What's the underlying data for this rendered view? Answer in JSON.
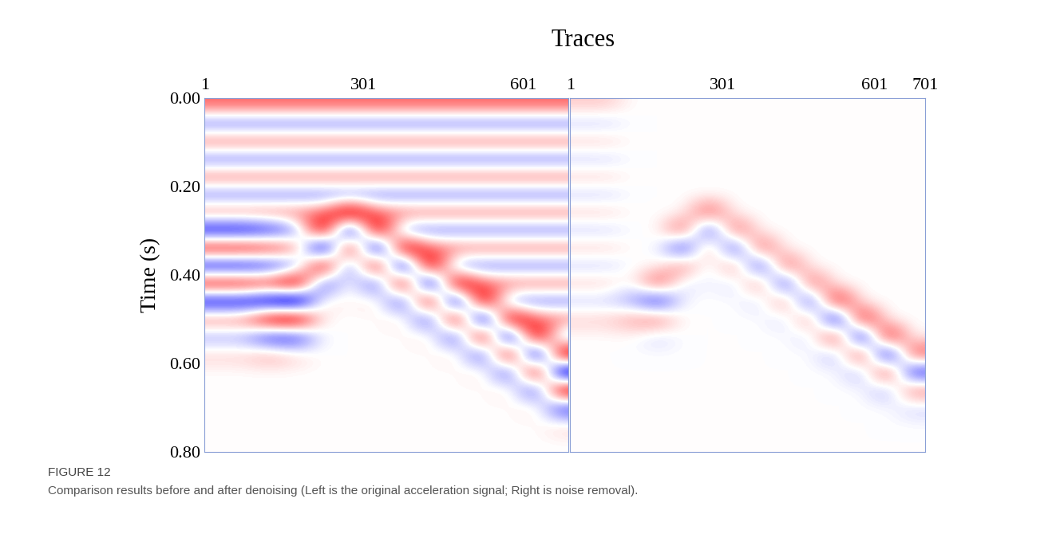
{
  "supertitle": "Traces",
  "caption": {
    "label": "FIGURE 12",
    "text": "Comparison results before and after denoising (Left is the original acceleration signal; Right is noise removal)."
  },
  "chart_data": [
    {
      "type": "heatmap",
      "color": "seismic",
      "value_range": [
        -1,
        1
      ],
      "y_label": "Time (s)",
      "x": [
        25,
        75,
        125,
        175,
        225,
        275,
        325,
        375,
        425,
        475,
        525,
        575,
        625,
        675
      ],
      "y": [
        0.02,
        0.06,
        0.1,
        0.14,
        0.18,
        0.22,
        0.26,
        0.3,
        0.34,
        0.38,
        0.42,
        0.46,
        0.5,
        0.54,
        0.58,
        0.62,
        0.66,
        0.7,
        0.74,
        0.78
      ],
      "xlim": [
        1,
        686
      ],
      "xticks": [
        1,
        301,
        601
      ],
      "ylim": [
        0.8,
        0
      ],
      "yticks": [
        {
          "value": 0,
          "label": "0.00"
        },
        {
          "value": 0.2,
          "label": "0.20"
        },
        {
          "value": 0.4,
          "label": "0.40"
        },
        {
          "value": 0.6,
          "label": "0.60"
        },
        {
          "value": 0.8,
          "label": "0.80"
        }
      ],
      "cells": [
        [
          0.3,
          0.3,
          0.3,
          0.3,
          0.3,
          0.3,
          0.3,
          0.3,
          0.3,
          0.3,
          0.3,
          0.3,
          0.3,
          0.3
        ],
        [
          -0.3,
          -0.3,
          -0.3,
          -0.3,
          -0.3,
          -0.3,
          -0.3,
          -0.3,
          -0.3,
          -0.3,
          -0.3,
          -0.3,
          -0.3,
          -0.3
        ],
        [
          0.3,
          0.3,
          0.3,
          0.3,
          0.3,
          0.3,
          0.3,
          0.3,
          0.3,
          0.3,
          0.3,
          0.3,
          0.3,
          0.3
        ],
        [
          -0.3,
          -0.3,
          -0.3,
          -0.3,
          -0.3,
          -0.3,
          -0.3,
          -0.3,
          -0.3,
          -0.3,
          -0.3,
          -0.3,
          -0.3,
          -0.3
        ],
        [
          0.3,
          0.3,
          0.3,
          0.3,
          0.3,
          0.3,
          0.3,
          0.3,
          0.3,
          0.3,
          0.3,
          0.3,
          0.3,
          0.3
        ],
        [
          -0.3,
          -0.3,
          -0.3,
          -0.3,
          -0.3,
          -0.3,
          -0.3,
          -0.3,
          -0.3,
          -0.3,
          -0.3,
          -0.3,
          -0.3,
          -0.3
        ],
        [
          0.3,
          0.3,
          0.3,
          0.3,
          0.3,
          0.8,
          0.3,
          0.3,
          0.3,
          0.3,
          0.3,
          0.3,
          0.3,
          0.3
        ],
        [
          -0.6,
          -0.6,
          -0.5,
          -0.3,
          0.8,
          -0.9,
          0.8,
          -0.3,
          -0.3,
          -0.3,
          -0.3,
          -0.3,
          -0.3,
          -0.3
        ],
        [
          0.6,
          0.6,
          0.5,
          0.3,
          -0.9,
          0.8,
          -0.9,
          0.8,
          0.3,
          0.3,
          0.3,
          0.3,
          0.3,
          0.3
        ],
        [
          -0.6,
          -0.6,
          -0.5,
          -0.3,
          0.8,
          -0.5,
          0.8,
          -0.9,
          0.8,
          -0.3,
          -0.3,
          -0.3,
          -0.3,
          -0.3
        ],
        [
          0.6,
          0.6,
          0.5,
          0.8,
          -0.5,
          0.1,
          -0.5,
          0.8,
          -0.9,
          0.8,
          0.3,
          0.3,
          0.3,
          0.3
        ],
        [
          -0.6,
          -0.6,
          -0.7,
          -0.9,
          0.1,
          0,
          0.1,
          -0.5,
          0.8,
          -0.9,
          0.8,
          -0.3,
          -0.3,
          -0.3
        ],
        [
          0.3,
          0.3,
          0.7,
          0.8,
          0,
          0,
          0,
          0.1,
          -0.5,
          0.8,
          -0.9,
          0.8,
          0.3,
          0.3
        ],
        [
          -0.2,
          -0.2,
          -0.5,
          -0.5,
          0,
          0,
          0,
          0,
          0.1,
          -0.5,
          0.8,
          -0.9,
          0.8,
          -0.3
        ],
        [
          0.1,
          0.1,
          0.2,
          0.1,
          0,
          0,
          0,
          0,
          0,
          0.1,
          -0.5,
          0.8,
          -0.9,
          0.8
        ],
        [
          0,
          0,
          0,
          0,
          0,
          0,
          0,
          0,
          0,
          0,
          0.1,
          -0.5,
          0.8,
          -0.9
        ],
        [
          0,
          0,
          0,
          0,
          0,
          0,
          0,
          0,
          0,
          0,
          0,
          0.1,
          -0.5,
          0.8
        ],
        [
          0,
          0,
          0,
          0,
          0,
          0,
          0,
          0,
          0,
          0,
          0,
          0,
          0.1,
          -0.5
        ],
        [
          0,
          0,
          0,
          0,
          0,
          0,
          0,
          0,
          0,
          0,
          0,
          0,
          0,
          0.1
        ],
        [
          0,
          0,
          0,
          0,
          0,
          0,
          0,
          0,
          0,
          0,
          0,
          0,
          0,
          0
        ]
      ]
    },
    {
      "type": "heatmap",
      "color": "seismic",
      "value_range": [
        -1,
        1
      ],
      "tick_labels": "x",
      "x": [
        25,
        75,
        125,
        175,
        225,
        275,
        325,
        375,
        425,
        475,
        525,
        575,
        625,
        675
      ],
      "y": [
        0.02,
        0.06,
        0.1,
        0.14,
        0.18,
        0.22,
        0.26,
        0.3,
        0.34,
        0.38,
        0.42,
        0.46,
        0.5,
        0.54,
        0.58,
        0.62,
        0.66,
        0.7,
        0.74,
        0.78
      ],
      "xlim": [
        1,
        701
      ],
      "xticks": [
        1,
        301,
        601,
        701
      ],
      "ylim": [
        0.8,
        0
      ],
      "cells": [
        [
          0.1,
          0.1,
          0,
          0,
          0,
          0,
          0,
          0,
          0,
          0,
          0,
          0,
          0,
          0
        ],
        [
          -0.1,
          -0.1,
          0,
          0,
          0,
          0,
          0,
          0,
          0,
          0,
          0,
          0,
          0,
          0
        ],
        [
          0.1,
          0.1,
          0,
          0,
          0,
          0,
          0,
          0,
          0,
          0,
          0,
          0,
          0,
          0
        ],
        [
          -0.1,
          -0.1,
          0,
          0,
          0,
          0,
          0,
          0,
          0,
          0,
          0,
          0,
          0,
          0
        ],
        [
          0.1,
          0.1,
          0,
          0,
          0,
          0,
          0,
          0,
          0,
          0,
          0,
          0,
          0,
          0
        ],
        [
          -0.1,
          -0.1,
          0,
          0,
          0,
          0,
          0,
          0,
          0,
          0,
          0,
          0,
          0,
          0
        ],
        [
          0.1,
          0.1,
          0,
          0,
          0,
          0.4,
          0,
          0,
          0,
          0,
          0,
          0,
          0,
          0
        ],
        [
          -0.1,
          -0.1,
          0,
          0,
          0.4,
          -0.5,
          0.4,
          0,
          0,
          0,
          0,
          0,
          0,
          0
        ],
        [
          0.1,
          0.1,
          0,
          0,
          -0.5,
          0.3,
          -0.5,
          0.4,
          0,
          0,
          0,
          0,
          0,
          0
        ],
        [
          -0.1,
          -0.1,
          0,
          0,
          0.3,
          -0.1,
          0.3,
          -0.5,
          0.4,
          0,
          0,
          0,
          0,
          0
        ],
        [
          0.1,
          0.1,
          0,
          0.4,
          -0.1,
          0,
          -0.1,
          0.3,
          -0.5,
          0.4,
          0,
          0,
          0,
          0
        ],
        [
          -0.1,
          -0.1,
          -0.2,
          -0.5,
          0,
          0,
          0,
          -0.1,
          0.3,
          -0.5,
          0.6,
          0,
          0,
          0
        ],
        [
          0.1,
          0.1,
          0.2,
          0.3,
          0,
          0,
          0,
          0,
          -0.1,
          0.3,
          -0.7,
          0.6,
          0,
          0
        ],
        [
          0,
          0,
          0,
          -0.1,
          0,
          0,
          0,
          0,
          0,
          -0.1,
          0.5,
          -0.7,
          0.6,
          0
        ],
        [
          0,
          0,
          0,
          0,
          0,
          0,
          0,
          0,
          0,
          0,
          -0.2,
          0.5,
          -0.7,
          0.4
        ],
        [
          0,
          0,
          0,
          0,
          0,
          0,
          0,
          0,
          0,
          0,
          0,
          -0.2,
          0.5,
          -0.5
        ],
        [
          0,
          0,
          0,
          0,
          0,
          0,
          0,
          0,
          0,
          0,
          0,
          0,
          -0.2,
          0.3
        ],
        [
          0,
          0,
          0,
          0,
          0,
          0,
          0,
          0,
          0,
          0,
          0,
          0,
          0,
          -0.1
        ],
        [
          0,
          0,
          0,
          0,
          0,
          0,
          0,
          0,
          0,
          0,
          0,
          0,
          0,
          0
        ],
        [
          0,
          0,
          0,
          0,
          0,
          0,
          0,
          0,
          0,
          0,
          0,
          0,
          0,
          0
        ]
      ]
    }
  ]
}
